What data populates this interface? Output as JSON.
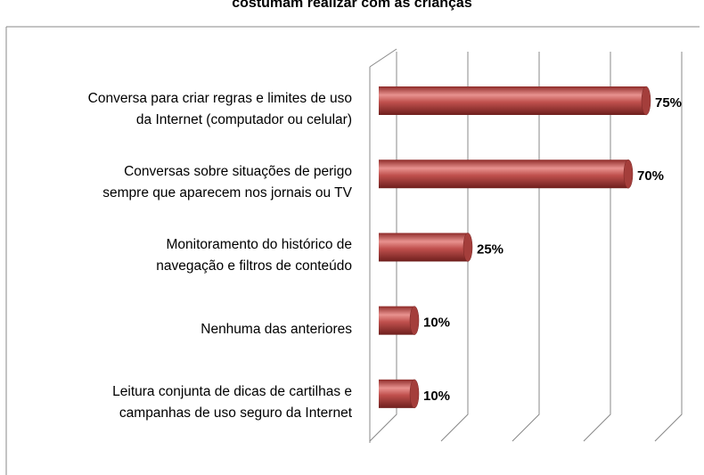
{
  "chart_data": {
    "type": "bar",
    "orientation": "horizontal",
    "title": "costumam realizar com as crianças",
    "categories": [
      "Conversa para criar regras e limites de uso\nda Internet (computador ou celular)",
      "Conversas sobre situações de perigo\nsempre que aparecem nos jornais ou TV",
      "Monitoramento do histórico de\nnavegação e filtros de conteúdo",
      "Nenhuma das anteriores",
      "Leitura conjunta de dicas de cartilhas e\ncampanhas de uso seguro da Internet"
    ],
    "values": [
      75,
      70,
      25,
      10,
      10
    ],
    "value_labels": [
      "75%",
      "70%",
      "25%",
      "10%",
      "10%"
    ],
    "color": "#c0504d",
    "xlim": [
      0,
      80
    ],
    "xticks": [
      0,
      20,
      40,
      60,
      80
    ],
    "grid": true
  }
}
